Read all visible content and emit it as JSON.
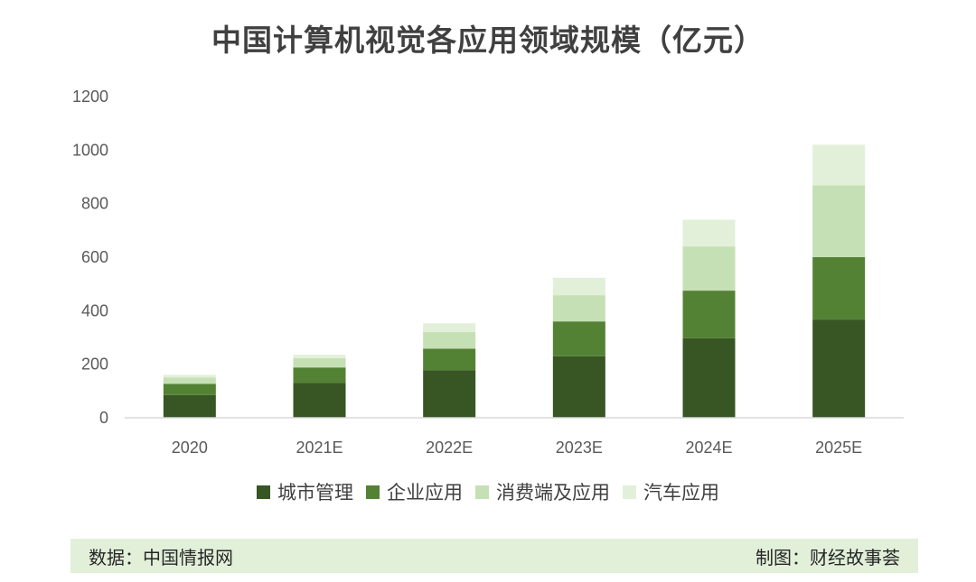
{
  "chart_data": {
    "type": "bar",
    "stacked": true,
    "title": "中国计算机视觉各应用领域规模（亿元）",
    "categories": [
      "2020",
      "2021E",
      "2022E",
      "2023E",
      "2024E",
      "2025E"
    ],
    "series": [
      {
        "name": "城市管理",
        "color": "#375623",
        "values": [
          85,
          130,
          178,
          230,
          297,
          367
        ]
      },
      {
        "name": "企业应用",
        "color": "#548235",
        "values": [
          42,
          58,
          80,
          130,
          178,
          233
        ]
      },
      {
        "name": "消费端及应用",
        "color": "#c5e0b4",
        "values": [
          23,
          35,
          62,
          98,
          165,
          268
        ]
      },
      {
        "name": "汽车应用",
        "color": "#e2f0d9",
        "values": [
          10,
          12,
          33,
          65,
          100,
          152
        ]
      }
    ],
    "ylim": [
      0,
      1200
    ],
    "yticks": [
      0,
      200,
      400,
      600,
      800,
      1000,
      1200
    ],
    "grid": false,
    "legend": "bottom"
  },
  "footer": {
    "source": "数据：中国情报网",
    "credit": "制图：财经故事荟"
  }
}
